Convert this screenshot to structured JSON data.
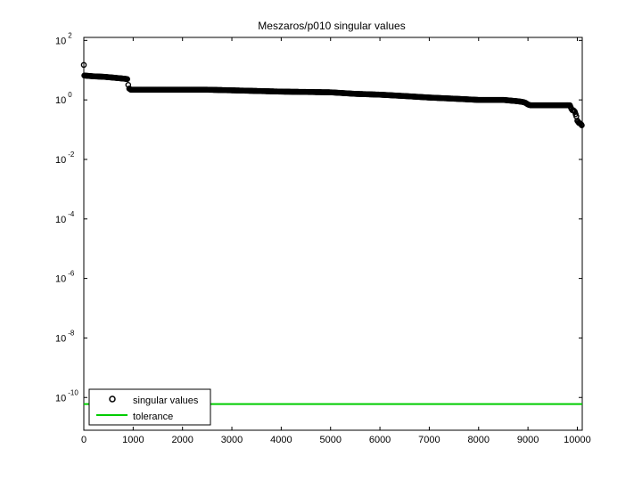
{
  "chart_data": {
    "type": "scatter",
    "title": "Meszaros/p010 singular values",
    "xlabel": "",
    "ylabel": "",
    "x_scale": "linear",
    "y_scale": "log",
    "xlim": [
      0,
      10100
    ],
    "ylim_exponent": [
      -11.1,
      2.1
    ],
    "x_ticks": [
      0,
      1000,
      2000,
      3000,
      4000,
      5000,
      6000,
      7000,
      8000,
      9000,
      10000
    ],
    "x_tick_labels": [
      "0",
      "1000",
      "2000",
      "3000",
      "4000",
      "5000",
      "6000",
      "7000",
      "8000",
      "9000",
      "10000"
    ],
    "y_ticks_exponent": [
      2,
      0,
      -2,
      -4,
      -6,
      -8,
      -10
    ],
    "y_tick_base": "10",
    "y_tick_exponents": [
      "2",
      "0",
      "-2",
      "-4",
      "-6",
      "-8",
      "-10"
    ],
    "grid": false,
    "legend_position": "bottom-left",
    "series": [
      {
        "name": "singular values",
        "marker": "circle",
        "color": "#000000",
        "x": [
          0,
          10,
          50,
          100,
          200,
          300,
          400,
          500,
          600,
          700,
          750,
          800,
          850,
          880,
          900,
          920,
          950,
          1000,
          1500,
          2000,
          2500,
          3000,
          3500,
          4000,
          4500,
          5000,
          5500,
          6000,
          6500,
          7000,
          7500,
          8000,
          8500,
          8800,
          8900,
          8950,
          9000,
          9050,
          9100,
          9500,
          9800,
          9850,
          9880,
          9900,
          9920,
          9950,
          9980,
          10000,
          10030,
          10060,
          10080,
          10090
        ],
        "y": [
          15,
          6.6,
          6.5,
          6.4,
          6.2,
          6.1,
          6.0,
          5.8,
          5.6,
          5.4,
          5.3,
          5.2,
          5.1,
          5.0,
          3.2,
          2.4,
          2.2,
          2.2,
          2.2,
          2.2,
          2.2,
          2.1,
          2.0,
          1.9,
          1.85,
          1.8,
          1.6,
          1.5,
          1.35,
          1.2,
          1.1,
          1.0,
          1.0,
          0.9,
          0.85,
          0.8,
          0.7,
          0.66,
          0.66,
          0.66,
          0.66,
          0.66,
          0.5,
          0.45,
          0.45,
          0.4,
          0.28,
          0.2,
          0.17,
          0.16,
          0.15,
          0.14
        ]
      },
      {
        "name": "tolerance",
        "marker": "line",
        "color": "#00cc00",
        "x": [
          0,
          10100
        ],
        "y": [
          6e-11,
          6e-11
        ]
      }
    ]
  }
}
